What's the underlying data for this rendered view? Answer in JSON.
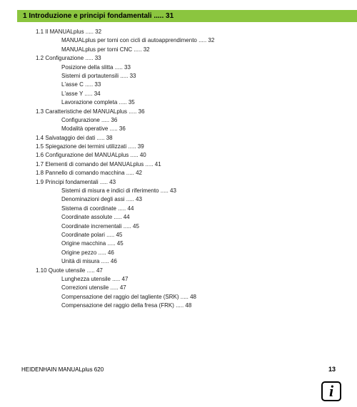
{
  "colors": {
    "header_bg": "#8bc53f",
    "page_bg": "#ffffff",
    "text": "#000000"
  },
  "typography": {
    "body_fontsize_pt": 6,
    "header_fontsize_pt": 8,
    "header_weight": "bold"
  },
  "chapter": {
    "title": "1 Introduzione e principi fondamentali ..... 31"
  },
  "toc": [
    {
      "level": 1,
      "text": "1.1 Il MANUALplus ..... 32"
    },
    {
      "level": 2,
      "text": "MANUALplus per torni con cicli di autoapprendimento ..... 32"
    },
    {
      "level": 2,
      "text": "MANUALplus per torni CNC ..... 32"
    },
    {
      "level": 1,
      "text": "1.2 Configurazione ..... 33"
    },
    {
      "level": 2,
      "text": "Posizione della slitta ..... 33"
    },
    {
      "level": 2,
      "text": "Sistemi di portautensili ..... 33"
    },
    {
      "level": 2,
      "text": "L'asse C ..... 33"
    },
    {
      "level": 2,
      "text": "L'asse Y ..... 34"
    },
    {
      "level": 2,
      "text": "Lavorazione completa ..... 35"
    },
    {
      "level": 1,
      "text": "1.3 Caratteristiche del MANUALplus ..... 36"
    },
    {
      "level": 2,
      "text": "Configurazione ..... 36"
    },
    {
      "level": 2,
      "text": "Modalità operative ..... 36"
    },
    {
      "level": 1,
      "text": "1.4 Salvataggio dei dati ..... 38"
    },
    {
      "level": 1,
      "text": "1.5 Spiegazione dei termini utilizzati ..... 39"
    },
    {
      "level": 1,
      "text": "1.6 Configurazione del MANUALplus ..... 40"
    },
    {
      "level": 1,
      "text": "1.7 Elementi di comando del MANUALplus ..... 41"
    },
    {
      "level": 1,
      "text": "1.8 Pannello di comando macchina ..... 42"
    },
    {
      "level": 1,
      "text": "1.9 Principi fondamentali ..... 43"
    },
    {
      "level": 2,
      "text": "Sistemi di misura e indici di riferimento ..... 43"
    },
    {
      "level": 2,
      "text": "Denominazioni degli assi ..... 43"
    },
    {
      "level": 2,
      "text": "Sistema di coordinate ..... 44"
    },
    {
      "level": 2,
      "text": "Coordinate assolute ..... 44"
    },
    {
      "level": 2,
      "text": "Coordinate incrementali ..... 45"
    },
    {
      "level": 2,
      "text": "Coordinate polari ..... 45"
    },
    {
      "level": 2,
      "text": "Origine macchina ..... 45"
    },
    {
      "level": 2,
      "text": "Origine pezzo ..... 46"
    },
    {
      "level": 2,
      "text": "Unità di misura ..... 46"
    },
    {
      "level": 1,
      "text": "1.10 Quote utensile ..... 47"
    },
    {
      "level": 2,
      "text": "Lunghezza utensile ..... 47"
    },
    {
      "level": 2,
      "text": "Correzioni utensile ..... 47"
    },
    {
      "level": 2,
      "text": "Compensazione del raggio del tagliente (SRK) ..... 48"
    },
    {
      "level": 2,
      "text": "Compensazione del raggio della fresa (FRK) ..... 48"
    }
  ],
  "footer": {
    "left": "HEIDENHAIN MANUALplus 620",
    "page": "13"
  },
  "info_glyph": "i"
}
